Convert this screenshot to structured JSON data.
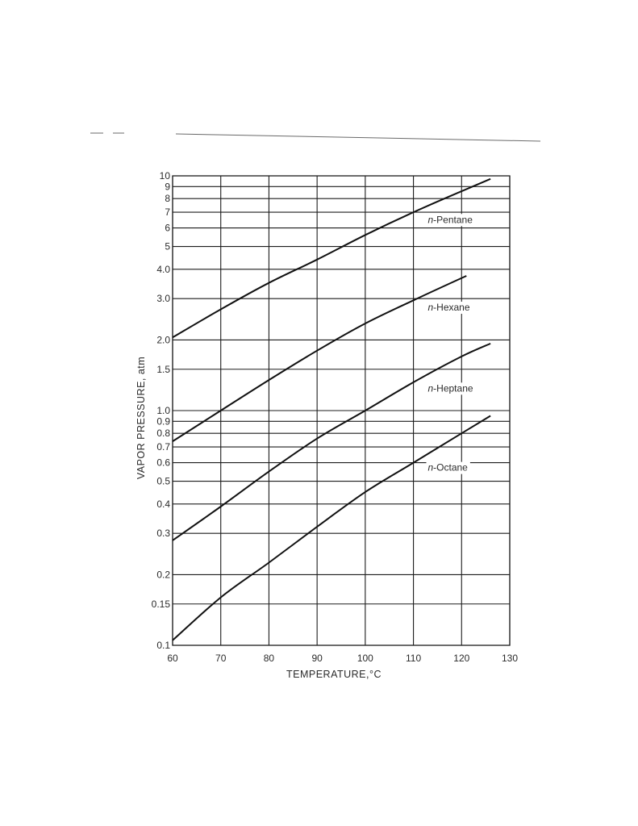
{
  "chart_data": {
    "type": "line",
    "xlabel": "TEMPERATURE,°C",
    "ylabel": "VAPOR PRESSURE, atm",
    "xlim": [
      60,
      130
    ],
    "ylim": [
      0.1,
      10
    ],
    "y_scale": "log",
    "grid": true,
    "x_ticks": [
      "60",
      "70",
      "80",
      "90",
      "100",
      "110",
      "120",
      "130"
    ],
    "y_ticks": [
      {
        "value": 10,
        "label": "10"
      },
      {
        "value": 9,
        "label": "9"
      },
      {
        "value": 8,
        "label": "8"
      },
      {
        "value": 7,
        "label": "7"
      },
      {
        "value": 6,
        "label": "6"
      },
      {
        "value": 5,
        "label": "5"
      },
      {
        "value": 4,
        "label": "4.0"
      },
      {
        "value": 3,
        "label": "3.0"
      },
      {
        "value": 2,
        "label": "2.0"
      },
      {
        "value": 1.5,
        "label": "1.5"
      },
      {
        "value": 1,
        "label": "1.0"
      },
      {
        "value": 0.9,
        "label": "0.9"
      },
      {
        "value": 0.8,
        "label": "0.8"
      },
      {
        "value": 0.7,
        "label": "0.7"
      },
      {
        "value": 0.6,
        "label": "0.6"
      },
      {
        "value": 0.5,
        "label": "0.5"
      },
      {
        "value": 0.4,
        "label": "0.4"
      },
      {
        "value": 0.3,
        "label": "0.3"
      },
      {
        "value": 0.2,
        "label": "0.2"
      },
      {
        "value": 0.15,
        "label": "0.15"
      },
      {
        "value": 0.1,
        "label": "0.1"
      }
    ],
    "series": [
      {
        "name": "n-Pentane",
        "x": [
          60,
          70,
          80,
          90,
          100,
          110,
          120,
          126
        ],
        "y": [
          2.05,
          2.7,
          3.5,
          4.4,
          5.6,
          7.0,
          8.6,
          9.7
        ]
      },
      {
        "name": "n-Hexane",
        "x": [
          60,
          70,
          80,
          90,
          100,
          110,
          121
        ],
        "y": [
          0.74,
          1.0,
          1.35,
          1.8,
          2.35,
          2.95,
          3.75
        ]
      },
      {
        "name": "n-Heptane",
        "x": [
          60,
          70,
          80,
          90,
          100,
          110,
          120,
          126
        ],
        "y": [
          0.28,
          0.39,
          0.55,
          0.76,
          1.0,
          1.32,
          1.7,
          1.93
        ]
      },
      {
        "name": "n-Octane",
        "x": [
          60,
          70,
          80,
          90,
          100,
          110,
          120,
          126
        ],
        "y": [
          0.105,
          0.16,
          0.225,
          0.32,
          0.45,
          0.6,
          0.8,
          0.95
        ]
      }
    ],
    "colors": {
      "line": "#111111",
      "grid": "#1c1c1c",
      "text": "#2a2a2a"
    }
  }
}
